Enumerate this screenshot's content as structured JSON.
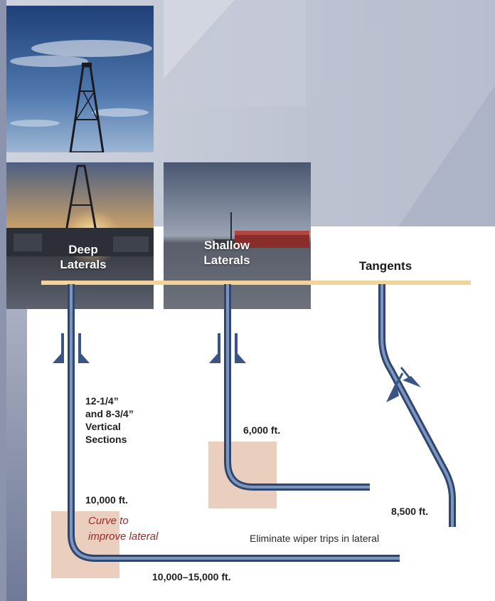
{
  "columns": {
    "deep": {
      "label_line1": "Deep",
      "label_line2": "Laterals"
    },
    "shallow": {
      "label_line1": "Shallow",
      "label_line2": "Laterals"
    },
    "tangents": {
      "label": "Tangents"
    }
  },
  "annotations": {
    "vertical_sections": [
      "12-1/4”",
      "and 8-3/4”",
      "Vertical",
      "Sections"
    ],
    "depth_10000": "10,000 ft.",
    "curve_note": [
      "Curve to",
      "improve lateral"
    ],
    "lateral_range": "10,000–15,000 ft.",
    "depth_6000": "6,000 ft.",
    "depth_8500": "8,500 ft.",
    "wiper_note": "Eliminate wiper trips in lateral"
  },
  "colors": {
    "surface_line": "#f2d49b",
    "pipe": "#4f6b97",
    "highlight_box": "#e6c6b3",
    "curve_text": "#9b2b2b",
    "background_panel": "#c5cad8"
  }
}
